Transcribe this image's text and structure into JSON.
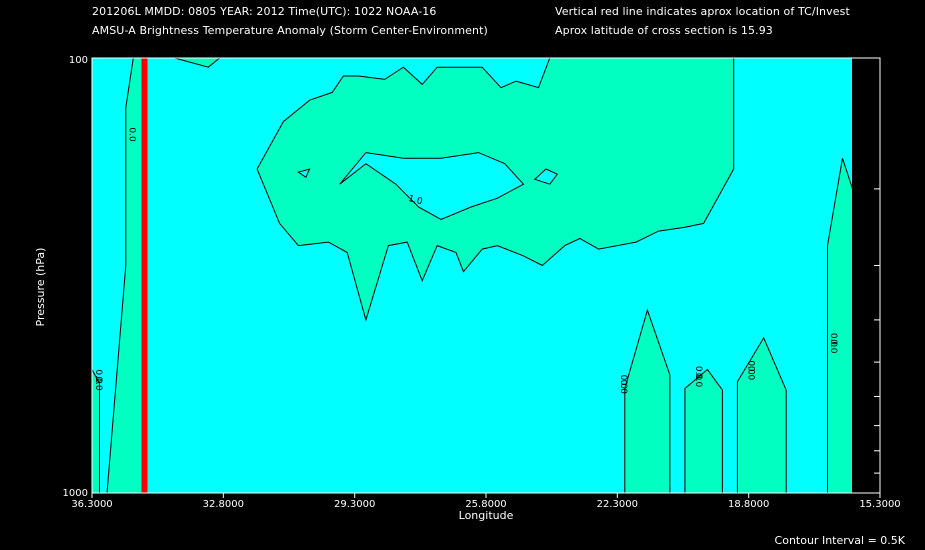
{
  "header": {
    "line1_left": "201206L  MMDD: 0805 YEAR: 2012 Time(UTC): 1022 NOAA-16",
    "line2_left": "AMSU-A Brightness Temperature Anomaly (Storm Center-Environment)",
    "line1_right": "Vertical red line indicates aprox location of TC/Invest",
    "line2_right": "Aprox latitude of cross section is 15.93"
  },
  "footer": {
    "contour_interval": "Contour Interval = 0.5K"
  },
  "colors": {
    "background": "#000000",
    "cool": "#00ffff",
    "warm": "#00ffc0",
    "marker": "#ff0000",
    "frame": "#ffffff"
  },
  "chart_data": {
    "type": "contour",
    "xlabel": "Longitude",
    "ylabel": "Pressure (hPa)",
    "x_ticks": [
      "36.3000",
      "32.8000",
      "29.3000",
      "25.8000",
      "22.3000",
      "18.8000",
      "15.3000"
    ],
    "y_ticks": [
      "100",
      "1000"
    ],
    "xlim": [
      36.3,
      15.3
    ],
    "ylim": [
      1000,
      100
    ],
    "y_scale": "log",
    "storm_center_longitude": 34.9,
    "contour_interval_K": 0.5,
    "levels": [
      "0.0",
      "1.0"
    ],
    "contour_labels": [
      {
        "text": "0.0",
        "lon": 35.3,
        "p": 150
      },
      {
        "text": "0.0",
        "lon": 36.2,
        "p": 540
      },
      {
        "text": "0.0",
        "lon": 36.2,
        "p": 560
      },
      {
        "text": "1.0",
        "lon": 27.7,
        "p": 215
      },
      {
        "text": "0.0",
        "lon": 22.2,
        "p": 555
      },
      {
        "text": "0.0",
        "lon": 22.2,
        "p": 570
      },
      {
        "text": "0.0",
        "lon": 20.2,
        "p": 530
      },
      {
        "text": "0.0",
        "lon": 20.2,
        "p": 550
      },
      {
        "text": "0.0",
        "lon": 18.8,
        "p": 515
      },
      {
        "text": "0.0",
        "lon": 18.8,
        "p": 530
      },
      {
        "text": "0.0",
        "lon": 16.6,
        "p": 445
      },
      {
        "text": "0.0",
        "lon": 16.6,
        "p": 460
      }
    ],
    "positive_regions": [
      [
        [
          36.3,
          1000
        ],
        [
          36.3,
          520
        ],
        [
          36.1,
          560
        ],
        [
          36.1,
          1000
        ]
      ],
      [
        [
          35.9,
          1000
        ],
        [
          35.4,
          300
        ],
        [
          35.4,
          130
        ],
        [
          35.2,
          100
        ],
        [
          34.9,
          100
        ],
        [
          34.9,
          1000
        ]
      ],
      [
        [
          34.1,
          100
        ],
        [
          33.2,
          105
        ],
        [
          32.9,
          100
        ]
      ],
      [
        [
          23.9,
          100
        ],
        [
          23.1,
          103
        ],
        [
          22.0,
          100
        ]
      ],
      [
        [
          21.2,
          100
        ],
        [
          21.2,
          113
        ],
        [
          20.6,
          100
        ]
      ],
      [
        [
          20.0,
          100
        ],
        [
          20.0,
          112
        ],
        [
          19.9,
          100
        ]
      ],
      [
        [
          31.9,
          180
        ],
        [
          31.2,
          140
        ],
        [
          30.5,
          125
        ],
        [
          29.9,
          120
        ],
        [
          29.6,
          110
        ],
        [
          29.2,
          110
        ],
        [
          28.5,
          112
        ],
        [
          28.0,
          105
        ],
        [
          27.5,
          115
        ],
        [
          27.1,
          105
        ],
        [
          26.5,
          105
        ],
        [
          25.9,
          105
        ],
        [
          25.4,
          117
        ],
        [
          25.0,
          113
        ],
        [
          24.7,
          115
        ],
        [
          24.4,
          117
        ],
        [
          24.1,
          100
        ],
        [
          19.2,
          100
        ],
        [
          19.2,
          180
        ],
        [
          20.0,
          240
        ],
        [
          20.5,
          245
        ],
        [
          21.2,
          250
        ],
        [
          21.8,
          265
        ],
        [
          22.8,
          275
        ],
        [
          23.3,
          260
        ],
        [
          23.7,
          270
        ],
        [
          24.3,
          300
        ],
        [
          24.8,
          285
        ],
        [
          25.5,
          270
        ],
        [
          25.9,
          275
        ],
        [
          26.4,
          310
        ],
        [
          26.6,
          280
        ],
        [
          27.1,
          270
        ],
        [
          27.5,
          325
        ],
        [
          27.9,
          265
        ],
        [
          28.4,
          270
        ],
        [
          29.0,
          400
        ],
        [
          29.5,
          280
        ],
        [
          30.0,
          265
        ],
        [
          30.8,
          270
        ],
        [
          31.3,
          240
        ]
      ],
      [
        [
          22.1,
          1000
        ],
        [
          22.1,
          575
        ],
        [
          21.5,
          380
        ],
        [
          20.9,
          535
        ],
        [
          20.9,
          1000
        ]
      ],
      [
        [
          20.5,
          1000
        ],
        [
          20.5,
          575
        ],
        [
          19.9,
          520
        ],
        [
          19.5,
          580
        ],
        [
          19.5,
          1000
        ]
      ],
      [
        [
          19.1,
          1000
        ],
        [
          19.1,
          555
        ],
        [
          18.4,
          440
        ],
        [
          17.8,
          580
        ],
        [
          17.8,
          1000
        ]
      ],
      [
        [
          16.7,
          1000
        ],
        [
          16.7,
          270
        ],
        [
          16.3,
          170
        ],
        [
          15.8,
          230
        ],
        [
          15.8,
          1000
        ]
      ]
    ],
    "cool_holes": [
      [
        [
          29.7,
          195
        ],
        [
          29.0,
          175
        ],
        [
          28.2,
          195
        ],
        [
          27.6,
          220
        ],
        [
          27.0,
          235
        ],
        [
          26.2,
          220
        ],
        [
          25.5,
          210
        ],
        [
          24.8,
          195
        ],
        [
          25.3,
          175
        ],
        [
          26.0,
          165
        ],
        [
          27.0,
          170
        ],
        [
          28.0,
          170
        ],
        [
          29.0,
          165
        ]
      ],
      [
        [
          24.5,
          190
        ],
        [
          24.1,
          195
        ],
        [
          23.9,
          185
        ],
        [
          24.2,
          180
        ]
      ],
      [
        [
          30.8,
          183
        ],
        [
          30.6,
          188
        ],
        [
          30.5,
          180
        ]
      ]
    ],
    "grid": false
  }
}
